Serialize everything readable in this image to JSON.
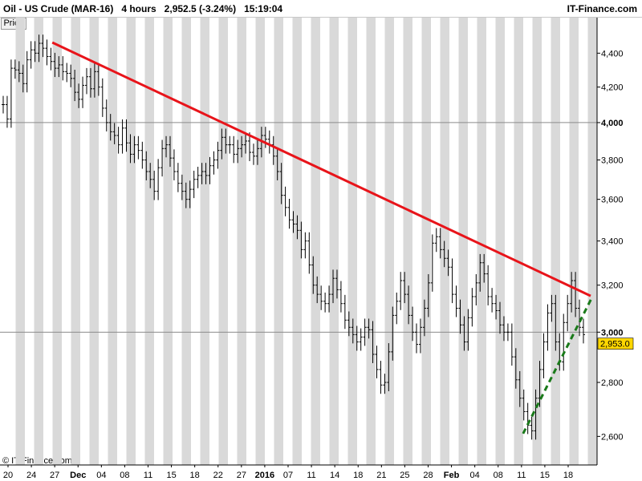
{
  "header": {
    "title": "Oil - US Crude (MAR-16)   4 hours   2,952.5 (-3.24%)   15:19:04",
    "brand": "IT-Finance.com"
  },
  "panel": {
    "price_tab": "Price"
  },
  "footer": {
    "copyright": "© IT-Finance.com"
  },
  "colors": {
    "resistance": "#e8141a",
    "support": "#1a7a1a",
    "band": "#d9d9d9",
    "candle": "#000000",
    "last_price_bg": "#ffd700"
  },
  "chart_data": {
    "type": "line",
    "title": "Oil - US Crude (MAR-16)",
    "timeframe": "4 hours",
    "last_price": "2,952.5",
    "change": "-3.24%",
    "time": "15:19:04",
    "last_price_label": "2,953.0",
    "y_scale": "log",
    "ylim": [
      2500,
      4620
    ],
    "grid": "alternating daily shaded bands",
    "y_ticks": [
      {
        "value": 4400,
        "label": "4,400"
      },
      {
        "value": 4200,
        "label": "4,200"
      },
      {
        "value": 4000,
        "label": "4,000"
      },
      {
        "value": 3800,
        "label": "3,800"
      },
      {
        "value": 3600,
        "label": "3,600"
      },
      {
        "value": 3400,
        "label": "3,400"
      },
      {
        "value": 3200,
        "label": "3,200"
      },
      {
        "value": 3000,
        "label": "3,000"
      },
      {
        "value": 2800,
        "label": "2,800"
      },
      {
        "value": 2600,
        "label": "2,600"
      }
    ],
    "x_labels": [
      "20",
      "24",
      "27",
      "Dec",
      "04",
      "08",
      "11",
      "15",
      "18",
      "22",
      "27",
      "2016",
      "07",
      "11",
      "14",
      "18",
      "21",
      "25",
      "28",
      "Feb",
      "04",
      "08",
      "11",
      "15",
      "18"
    ],
    "x_major_labels": [
      "Dec",
      "2016",
      "Feb"
    ],
    "series": [
      {
        "style": "bar",
        "values": [
          4100,
          4020,
          4310,
          4300,
          4280,
          4220,
          4360,
          4420,
          4400,
          4460,
          4430,
          4380,
          4350,
          4310,
          4330,
          4290,
          4280,
          4250,
          4170,
          4130,
          4210,
          4260,
          4190,
          4290,
          4200,
          4080,
          4000,
          3950,
          3930,
          3880,
          3970,
          3890,
          3830,
          3880,
          3850,
          3800,
          3740,
          3700,
          3640,
          3760,
          3860,
          3880,
          3810,
          3740,
          3680,
          3640,
          3600,
          3650,
          3700,
          3720,
          3740,
          3720,
          3770,
          3800,
          3850,
          3920,
          3880,
          3880,
          3830,
          3860,
          3880,
          3900,
          3840,
          3820,
          3860,
          3930,
          3910,
          3880,
          3820,
          3740,
          3620,
          3560,
          3500,
          3480,
          3450,
          3360,
          3400,
          3290,
          3200,
          3160,
          3130,
          3120,
          3160,
          3230,
          3180,
          3120,
          3050,
          3020,
          2990,
          2960,
          2980,
          3020,
          3010,
          2910,
          2850,
          2790,
          2800,
          2920,
          3070,
          3130,
          3220,
          3160,
          3070,
          3000,
          2950,
          3020,
          3100,
          3210,
          3390,
          3420,
          3360,
          3320,
          3280,
          3160,
          3100,
          3030,
          2960,
          3060,
          3150,
          3210,
          3300,
          3250,
          3150,
          3120,
          3090,
          3030,
          3000,
          3000,
          2900,
          2810,
          2740,
          2690,
          2640,
          2620,
          2740,
          2850,
          2960,
          3080,
          3120,
          2960,
          2880,
          3040,
          3120,
          3220,
          3100,
          3020,
          2990
        ]
      },
      {
        "name": "",
        "style": "trendline",
        "color": "resistance",
        "points": [
          {
            "x": "27",
            "y": 4465
          },
          {
            "x": "18",
            "y": 3160
          }
        ]
      },
      {
        "name": "",
        "style": "dashed-trendline",
        "color": "support",
        "points": [
          {
            "x": "11",
            "y": 2610
          },
          {
            "x": "18",
            "y": 3080
          }
        ]
      }
    ]
  }
}
